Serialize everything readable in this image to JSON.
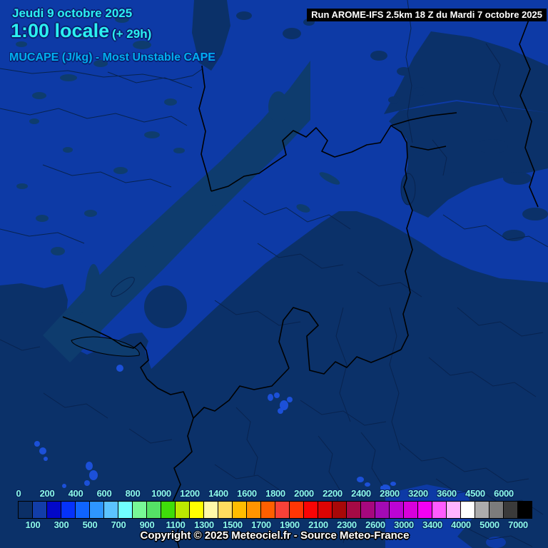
{
  "header": {
    "date": "Jeudi 9 octobre 2025",
    "local_time": "1:00 locale",
    "forecast_offset": "(+ 29h)",
    "parameter": "MUCAPE (J/kg) - Most Unstable CAPE",
    "run_info": "Run AROME-IFS 2.5km 18 Z du Mardi 7 octobre 2025"
  },
  "footer": {
    "copyright": "Copyright © 2025 Meteociel.fr - Source Meteo-France"
  },
  "legend": {
    "unit": "J/kg",
    "boundaries": [
      0,
      100,
      200,
      300,
      400,
      500,
      600,
      700,
      800,
      900,
      1000,
      1100,
      1200,
      1300,
      1400,
      1500,
      1600,
      1700,
      1800,
      1900,
      2000,
      2100,
      2200,
      2300,
      2400,
      2600,
      2800,
      3000,
      3200,
      3400,
      3600,
      4000,
      4500,
      5000,
      6000,
      7000
    ],
    "cells": [
      {
        "range": "0-100",
        "color": "#0B2F66"
      },
      {
        "range": "100-200",
        "color": "#123DA8"
      },
      {
        "range": "200-300",
        "color": "#0208C8"
      },
      {
        "range": "300-400",
        "color": "#0532FA"
      },
      {
        "range": "400-500",
        "color": "#0F64FF"
      },
      {
        "range": "500-600",
        "color": "#2E96FF"
      },
      {
        "range": "600-700",
        "color": "#5BC3FF"
      },
      {
        "range": "700-800",
        "color": "#70FFFF"
      },
      {
        "range": "800-900",
        "color": "#78F896"
      },
      {
        "range": "900-1000",
        "color": "#55E266"
      },
      {
        "range": "1000-1100",
        "color": "#3FDC0A"
      },
      {
        "range": "1100-1200",
        "color": "#BCE800"
      },
      {
        "range": "1200-1300",
        "color": "#FFFF00"
      },
      {
        "range": "1300-1400",
        "color": "#FFF9A8"
      },
      {
        "range": "1400-1500",
        "color": "#FFDC5F"
      },
      {
        "range": "1500-1600",
        "color": "#FFBC00"
      },
      {
        "range": "1600-1700",
        "color": "#FF9400"
      },
      {
        "range": "1700-1800",
        "color": "#FF5F00"
      },
      {
        "range": "1800-1900",
        "color": "#F94138"
      },
      {
        "range": "1900-2000",
        "color": "#FF3605"
      },
      {
        "range": "2000-2100",
        "color": "#FB0405"
      },
      {
        "range": "2100-2200",
        "color": "#DC0404"
      },
      {
        "range": "2200-2300",
        "color": "#A80808"
      },
      {
        "range": "2300-2400",
        "color": "#A50A45"
      },
      {
        "range": "2400-2600",
        "color": "#A6087E"
      },
      {
        "range": "2600-2800",
        "color": "#A30AB5"
      },
      {
        "range": "2800-3000",
        "color": "#BC04D4"
      },
      {
        "range": "3000-3200",
        "color": "#D800DC"
      },
      {
        "range": "3200-3400",
        "color": "#F400F4"
      },
      {
        "range": "3400-3600",
        "color": "#FF5CFF"
      },
      {
        "range": "3600-4000",
        "color": "#FFB4FF"
      },
      {
        "range": "4000-4500",
        "color": "#FFFFFF"
      },
      {
        "range": "4500-5000",
        "color": "#ACACAC"
      },
      {
        "range": "5000-6000",
        "color": "#7C7C7C"
      },
      {
        "range": "6000-7000",
        "color": "#3A3A3A"
      },
      {
        "range": "7000+",
        "color": "#000000"
      }
    ]
  },
  "colors": {
    "map_blue": "#0D3AA6",
    "map_dark": "#0B3169",
    "map_dark2": "#0E3C6E",
    "dot_blue": "#1C50D8",
    "border_black": "#000000",
    "border_thin": "#08234F",
    "text_cyan": "#2BF0F0",
    "text_blue": "#00AEEF",
    "legend_label": "#8CF8E8",
    "runbox_bg": "#000000",
    "runbox_text": "#FFFFFF",
    "copyright_text": "#FFFFFF"
  }
}
